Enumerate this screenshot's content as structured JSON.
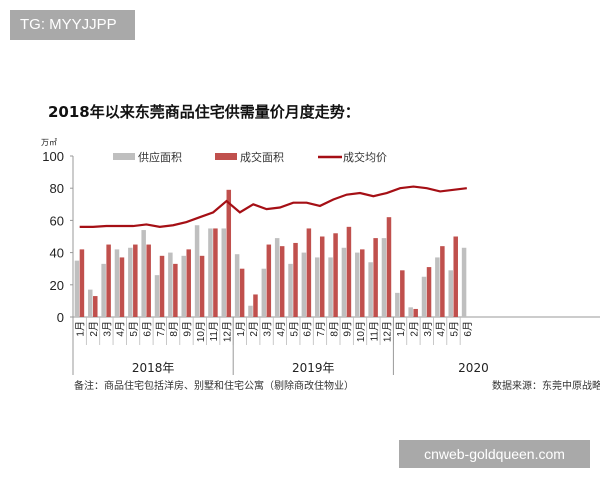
{
  "badges": {
    "top_left": "TG: MYYJJPP",
    "bottom_right": "cnweb-goldqueen.com"
  },
  "title": "2018年以来东莞商品住宅供需量价月度走势：",
  "footnote": "备注：商品住宅包括洋房、别墅和住宅公寓（剔除商改住物业）",
  "source": "数据来源：东莞中原战略",
  "colors": {
    "supply": "#bfbfbf",
    "sales": "#c0504d",
    "price": "#a50f15"
  },
  "chart_data": {
    "type": "bar",
    "title": "2018年以来东莞商品住宅供需量价月度走势：",
    "ylabel": "万㎡",
    "ylim": [
      0,
      100
    ],
    "yticks": [
      0,
      20,
      40,
      60,
      80,
      100
    ],
    "legend": [
      "供应面积",
      "成交面积",
      "成交均价"
    ],
    "legend_position": "top",
    "groups": [
      {
        "label": "2018年",
        "months": 12
      },
      {
        "label": "2019年",
        "months": 12
      },
      {
        "label": "2020",
        "months": 6
      }
    ],
    "categories": [
      "1月",
      "2月",
      "3月",
      "4月",
      "5月",
      "6月",
      "7月",
      "8月",
      "9月",
      "10月",
      "11月",
      "12月",
      "1月",
      "2月",
      "3月",
      "4月",
      "5月",
      "6月",
      "7月",
      "8月",
      "9月",
      "10月",
      "11月",
      "12月",
      "1月",
      "2月",
      "3月",
      "4月",
      "5月",
      "6月"
    ],
    "series": [
      {
        "name": "供应面积",
        "type": "bar",
        "values": [
          35,
          17,
          33,
          42,
          43,
          54,
          26,
          40,
          38,
          57,
          55,
          55,
          39,
          7,
          30,
          49,
          33,
          40,
          37,
          37,
          43,
          40,
          34,
          49,
          15,
          6,
          25,
          37,
          29,
          43
        ]
      },
      {
        "name": "成交面积",
        "type": "bar",
        "values": [
          42,
          13,
          45,
          37,
          45,
          45,
          38,
          33,
          42,
          38,
          55,
          79,
          30,
          14,
          45,
          44,
          46,
          55,
          50,
          52,
          56,
          42,
          49,
          62,
          29,
          5,
          31,
          44,
          50,
          null
        ]
      },
      {
        "name": "成交均价",
        "type": "line",
        "values": [
          56,
          56,
          56.5,
          56.5,
          56.5,
          57.5,
          56,
          57,
          59,
          62,
          65,
          72,
          65,
          70,
          67,
          68,
          71,
          71,
          69,
          73,
          76,
          77,
          75,
          77,
          80,
          81,
          80,
          78,
          79,
          80
        ]
      }
    ]
  }
}
